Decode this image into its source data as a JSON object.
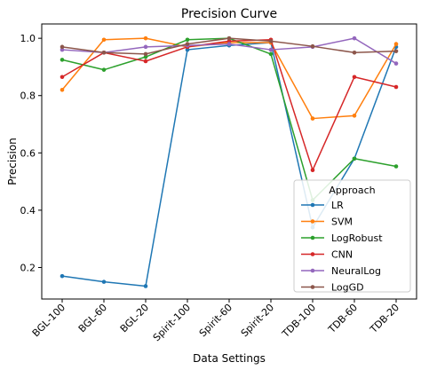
{
  "chart_data": {
    "type": "line",
    "title": "Precision Curve",
    "xlabel": "Data Settings",
    "ylabel": "Precision",
    "categories": [
      "BGL-100",
      "BGL-60",
      "BGL-20",
      "Spirit-100",
      "Spirit-60",
      "Spirit-20",
      "TDB-100",
      "TDB-60",
      "TDB-20"
    ],
    "ylim": [
      0.09,
      1.05
    ],
    "yticks": [
      0.2,
      0.4,
      0.6,
      0.8,
      1.0
    ],
    "ytick_labels": [
      "0.2",
      "0.4",
      "0.6",
      "0.8",
      "1.0"
    ],
    "grid": false,
    "legend": {
      "title": "Approach",
      "placement": "lower-right"
    },
    "series": [
      {
        "name": "LR",
        "color": "#1f77b4",
        "values": [
          0.17,
          0.15,
          0.135,
          0.96,
          0.975,
          0.985,
          0.34,
          0.58,
          0.97
        ]
      },
      {
        "name": "SVM",
        "color": "#ff7f0e",
        "values": [
          0.82,
          0.995,
          1.0,
          0.97,
          0.985,
          0.985,
          0.72,
          0.73,
          0.98
        ]
      },
      {
        "name": "LogRobust",
        "color": "#2ca02c",
        "values": [
          0.925,
          0.89,
          0.935,
          0.995,
          1.0,
          0.945,
          0.435,
          0.58,
          0.553
        ]
      },
      {
        "name": "CNN",
        "color": "#d62728",
        "values": [
          0.865,
          0.95,
          0.92,
          0.97,
          0.99,
          0.995,
          0.54,
          0.865,
          0.83
        ]
      },
      {
        "name": "NeuralLog",
        "color": "#9467bd",
        "values": [
          0.96,
          0.95,
          0.97,
          0.975,
          0.98,
          0.96,
          0.97,
          1.0,
          0.912
        ]
      },
      {
        "name": "LogGD",
        "color": "#8c564b",
        "values": [
          0.97,
          0.95,
          0.945,
          0.98,
          1.0,
          0.99,
          0.972,
          0.95,
          0.955
        ]
      }
    ]
  }
}
